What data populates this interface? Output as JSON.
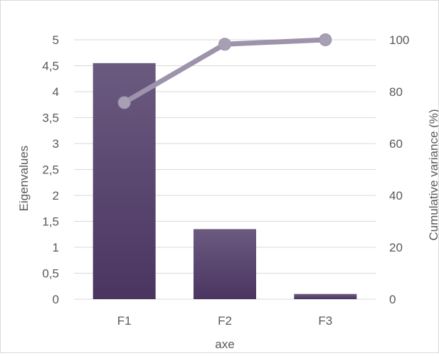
{
  "chart_data": {
    "type": "bar+line",
    "categories": [
      "F1",
      "F2",
      "F3"
    ],
    "series": [
      {
        "values": [
          4.55,
          1.35,
          0.1
        ],
        "axis": "left",
        "kind": "bar"
      },
      {
        "values": [
          75.8,
          98.3,
          100
        ],
        "axis": "right",
        "kind": "line"
      }
    ],
    "xlabel": "axe",
    "ylabel": "Eigenvalues",
    "y2label": "Cumulative variance (%)",
    "ylim": [
      0,
      5
    ],
    "y2lim": [
      0,
      100
    ],
    "yticks": [
      "0",
      "0,5",
      "1",
      "1,5",
      "2",
      "2,5",
      "3",
      "3,5",
      "4",
      "4,5",
      "5"
    ],
    "y2ticks": [
      "0",
      "20",
      "40",
      "60",
      "80",
      "100"
    ],
    "grid": true,
    "legend": "none",
    "colors": {
      "bar_top": "#6b5a80",
      "bar_bottom": "#4a3560",
      "line": "#9d93aa",
      "marker": "#a79fb3",
      "grid": "#d9d9d9",
      "text": "#595959"
    }
  }
}
